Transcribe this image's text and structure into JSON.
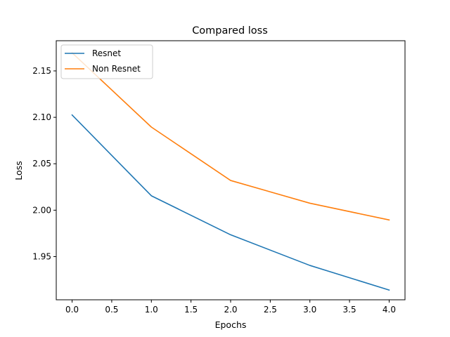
{
  "chart_data": {
    "type": "line",
    "title": "Compared loss",
    "xlabel": "Epochs",
    "ylabel": "Loss",
    "x": [
      0,
      1,
      2,
      3,
      4
    ],
    "xlim": [
      -0.2,
      4.2
    ],
    "ylim": [
      1.9035,
      2.1825
    ],
    "xticks": [
      "0.0",
      "0.5",
      "1.0",
      "1.5",
      "2.0",
      "2.5",
      "3.0",
      "3.5",
      "4.0"
    ],
    "xtick_values": [
      0,
      0.5,
      1,
      1.5,
      2,
      2.5,
      3,
      3.5,
      4
    ],
    "yticks": [
      "1.95",
      "2.00",
      "2.05",
      "2.10",
      "2.15"
    ],
    "ytick_values": [
      1.95,
      2.0,
      2.05,
      2.1,
      2.15
    ],
    "grid": false,
    "legend_position": "top-left",
    "series": [
      {
        "name": "Resnet",
        "values": [
          2.1025,
          2.0155,
          1.9735,
          1.9405,
          1.914
        ],
        "color": "#1f77b4"
      },
      {
        "name": "Non Resnet",
        "values": [
          2.1695,
          2.0895,
          2.032,
          2.0075,
          1.9895
        ],
        "color": "#ff7f0e"
      }
    ]
  }
}
